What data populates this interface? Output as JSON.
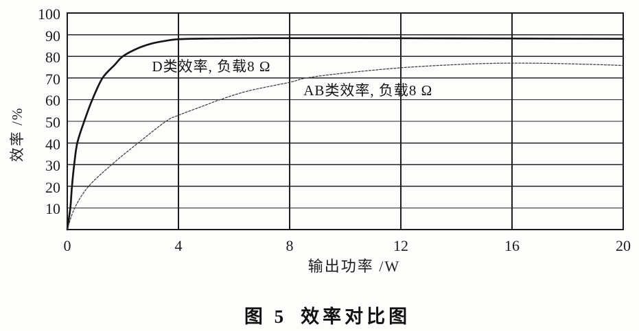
{
  "chart_data": {
    "type": "line",
    "title": "图 5 效率对比图",
    "xlabel": "输出功率 /W",
    "ylabel": "效率 /%",
    "xlim": [
      0,
      20
    ],
    "ylim": [
      0,
      100
    ],
    "xticks": [
      0,
      4,
      8,
      12,
      16,
      20
    ],
    "yticks": [
      10,
      20,
      30,
      40,
      50,
      60,
      70,
      80,
      90,
      100
    ],
    "grid": true,
    "legend_position": "inline-annotations",
    "axis_color": "#1a1a1a",
    "series": [
      {
        "name": "D类效率, 负载8 Ω",
        "line_style": "solid",
        "line_width": "thick",
        "color": "#161616",
        "points": [
          [
            0,
            0
          ],
          [
            0.11,
            10
          ],
          [
            0.17,
            20
          ],
          [
            0.25,
            30
          ],
          [
            0.36,
            40
          ],
          [
            0.61,
            50
          ],
          [
            0.9,
            60
          ],
          [
            1.27,
            70
          ],
          [
            1.7,
            76
          ],
          [
            2.0,
            80
          ],
          [
            2.5,
            83.5
          ],
          [
            3.0,
            85.8
          ],
          [
            3.5,
            87.1
          ],
          [
            4.0,
            87.9
          ],
          [
            5,
            88.2
          ],
          [
            7,
            88.4
          ],
          [
            10,
            88.4
          ],
          [
            14,
            88.3
          ],
          [
            17,
            88.2
          ],
          [
            20,
            88.1
          ]
        ]
      },
      {
        "name": "AB类效率, 负载8 Ω",
        "line_style": "dashed",
        "line_width": "thin",
        "color": "#3d3d3d",
        "points": [
          [
            0,
            0
          ],
          [
            0.27,
            10
          ],
          [
            0.77,
            20
          ],
          [
            1.6,
            30
          ],
          [
            2.55,
            40
          ],
          [
            3.55,
            50
          ],
          [
            4,
            52.8
          ],
          [
            5,
            57.6
          ],
          [
            5.5,
            60
          ],
          [
            6.5,
            64
          ],
          [
            8,
            68
          ],
          [
            8.6,
            70
          ],
          [
            10,
            72.3
          ],
          [
            12,
            74.7
          ],
          [
            14,
            76.2
          ],
          [
            15.5,
            76.8
          ],
          [
            17,
            76.8
          ],
          [
            18.5,
            76.4
          ],
          [
            20,
            75.8
          ]
        ]
      }
    ],
    "annotations": [
      {
        "text": "D类效率, 负载8 Ω",
        "x": 3.05,
        "y": 75.5
      },
      {
        "text": "AB类效率, 负载8 Ω",
        "x": 8.5,
        "y": 64.5
      }
    ]
  },
  "caption": {
    "figure_label": "图 5",
    "figure_title": "效率对比图"
  }
}
